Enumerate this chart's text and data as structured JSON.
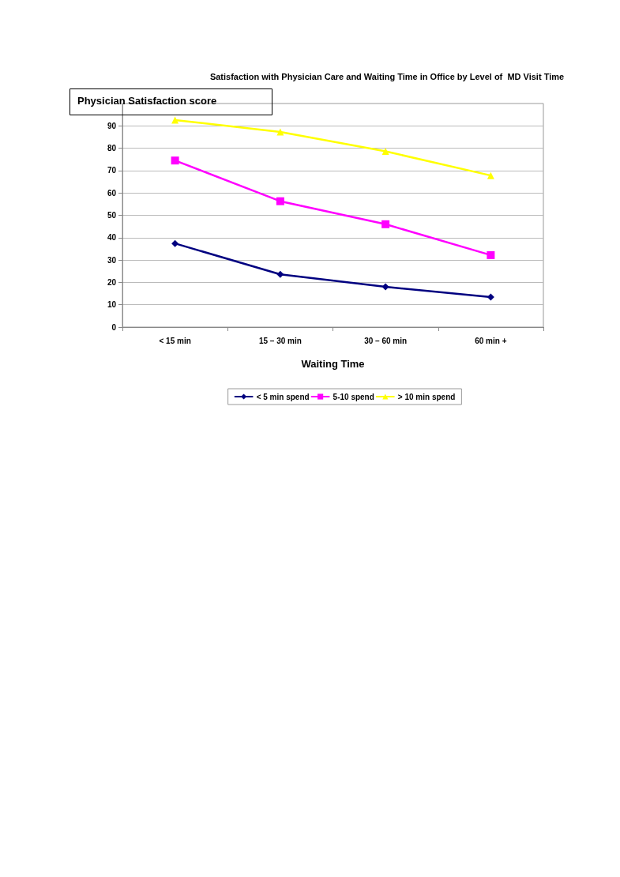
{
  "chart_data": {
    "type": "line",
    "title": "Satisfaction with Physician Care and Waiting Time in Office by Level of  MD Visit Time",
    "ylabel": "Physician Satisfaction score",
    "xlabel": "Waiting Time",
    "categories": [
      "< 15 min",
      "15 – 30 min",
      "30 – 60 min",
      "60 min +"
    ],
    "series": [
      {
        "name": "< 5 min spend",
        "color": "#000080",
        "marker": "diamond",
        "values": [
          37.4,
          23.6,
          18,
          13.4
        ]
      },
      {
        "name": "5-10 spend",
        "color": "#ff00ff",
        "marker": "square",
        "values": [
          74.5,
          56.3,
          46,
          32.2
        ]
      },
      {
        "name": "> 10 min spend",
        "color": "#ffff00",
        "marker": "triangle",
        "values": [
          92.6,
          87.3,
          78.6,
          67.8
        ]
      }
    ],
    "ylim": [
      0,
      100
    ],
    "yticks": [
      0,
      10,
      20,
      30,
      40,
      50,
      60,
      70,
      80,
      90
    ],
    "grid": "y",
    "legend": "bottom"
  }
}
